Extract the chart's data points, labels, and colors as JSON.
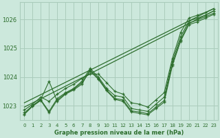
{
  "background_color": "#cce8dc",
  "grid_color": "#aaccbb",
  "line_color": "#2d6e2d",
  "xlabel": "Graphe pression niveau de la mer (hPa)",
  "xlim": [
    -0.5,
    23.5
  ],
  "ylim": [
    1022.5,
    1026.6
  ],
  "yticks": [
    1023,
    1024,
    1025,
    1026
  ],
  "xticks": [
    0,
    1,
    2,
    3,
    4,
    5,
    6,
    7,
    8,
    9,
    10,
    11,
    12,
    13,
    14,
    15,
    16,
    17,
    18,
    19,
    20,
    21,
    22,
    23
  ],
  "series": [
    [
      1022.7,
      1023.0,
      1023.2,
      1022.8,
      1023.25,
      1023.45,
      1023.6,
      1023.85,
      1024.3,
      1024.0,
      1023.6,
      1023.35,
      1023.3,
      1022.9,
      1022.85,
      1022.8,
      1023.05,
      1023.3,
      1024.55,
      1025.4,
      1025.95,
      1026.05,
      1026.15,
      1026.3
    ],
    [
      1022.85,
      1023.05,
      1023.3,
      1023.15,
      1023.4,
      1023.6,
      1023.75,
      1023.95,
      1024.1,
      1024.1,
      1023.8,
      1023.5,
      1023.4,
      1023.1,
      1023.05,
      1022.95,
      1023.2,
      1023.45,
      1024.65,
      1025.55,
      1026.05,
      1026.15,
      1026.25,
      1026.38
    ],
    [
      1022.75,
      1023.0,
      1023.22,
      1023.85,
      1023.15,
      1023.4,
      1023.55,
      1023.75,
      1024.25,
      1023.95,
      1023.55,
      1023.25,
      1023.2,
      1022.82,
      1022.78,
      1022.72,
      1022.95,
      1023.18,
      1024.45,
      1025.3,
      1025.88,
      1025.98,
      1026.1,
      1026.22
    ],
    [
      1022.7,
      1022.98,
      1023.18,
      1022.75,
      1023.2,
      1023.42,
      1023.58,
      1023.8,
      1024.2,
      1023.92,
      1023.52,
      1023.22,
      1023.15,
      1022.78,
      1022.73,
      1022.68,
      1022.9,
      1023.12,
      1024.4,
      1025.25,
      1025.82,
      1025.92,
      1026.05,
      1026.18
    ]
  ],
  "straight_lines": [
    [
      [
        0,
        23
      ],
      [
        1022.95,
        1026.3
      ]
    ],
    [
      [
        0,
        23
      ],
      [
        1023.1,
        1026.38
      ]
    ]
  ]
}
